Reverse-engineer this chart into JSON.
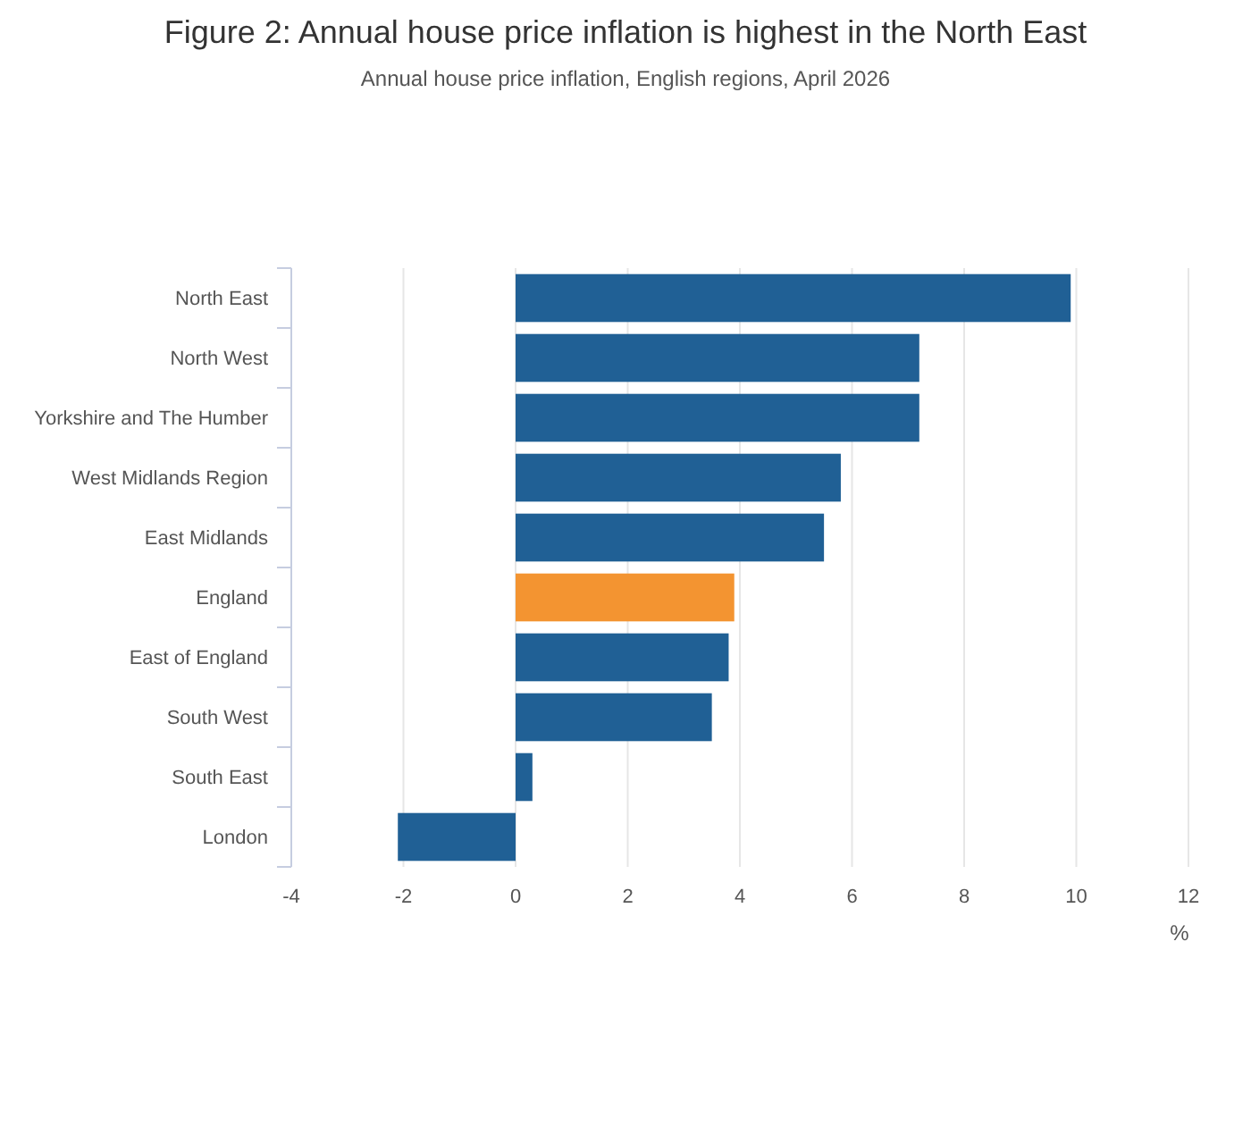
{
  "chart_data": {
    "type": "bar",
    "orientation": "horizontal",
    "title": "Figure 2: Annual house price inflation is highest in the North East",
    "subtitle": "Annual house price inflation, English regions, April 2026",
    "xlabel": "%",
    "categories": [
      "North East",
      "North West",
      "Yorkshire and The Humber",
      "West Midlands Region",
      "East Midlands",
      "England",
      "East of England",
      "South West",
      "South East",
      "London"
    ],
    "values": [
      9.9,
      7.2,
      7.2,
      5.8,
      5.5,
      3.9,
      3.8,
      3.5,
      0.3,
      -2.1
    ],
    "colors": [
      "#206095",
      "#206095",
      "#206095",
      "#206095",
      "#206095",
      "#f39431",
      "#206095",
      "#206095",
      "#206095",
      "#206095"
    ],
    "xlim": [
      -4,
      12
    ],
    "xticks": [
      -4,
      -2,
      0,
      2,
      4,
      6,
      8,
      10,
      12
    ],
    "grid": "x"
  }
}
